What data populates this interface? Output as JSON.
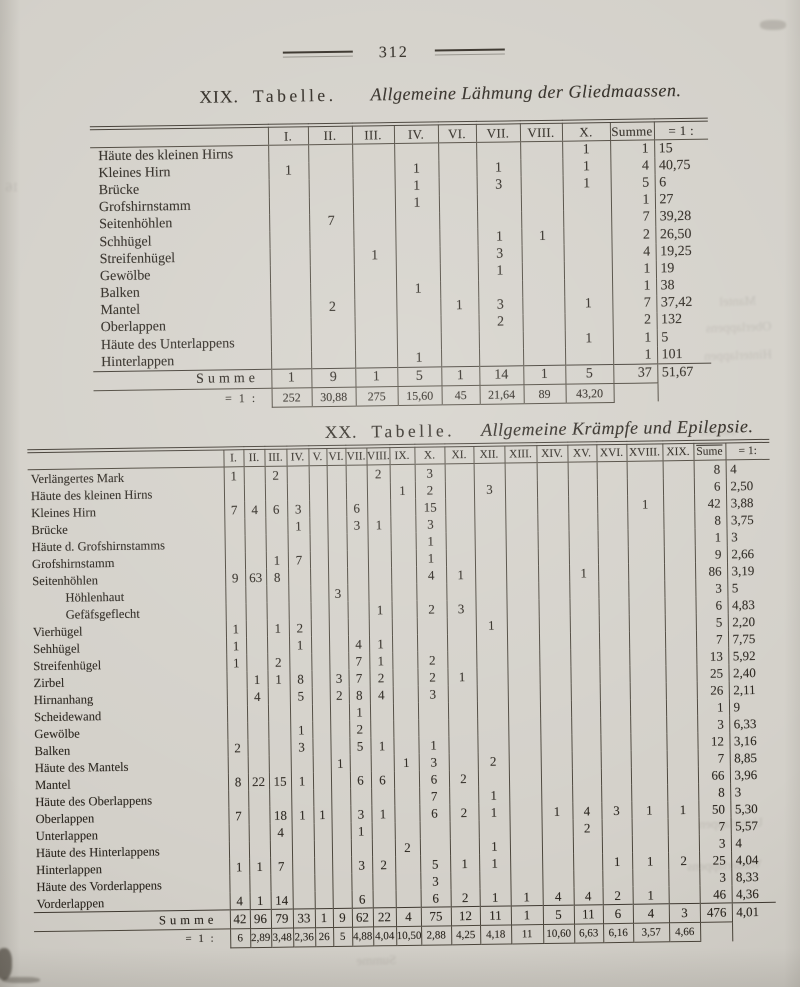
{
  "page": {
    "number": "312"
  },
  "table19": {
    "title_prefix": "XIX.",
    "title_label": "Tabelle.",
    "title_text": "Allgemeine Lähmung der Gliedmaassen.",
    "columns": [
      "I.",
      "II.",
      "III.",
      "IV.",
      "VI.",
      "VII.",
      "VIII.",
      "X.",
      "Summe",
      "= 1 :"
    ],
    "rows": [
      {
        "label": "Häute des kleinen Hirns",
        "cells": [
          "",
          "",
          "",
          "",
          "",
          "",
          "",
          "1"
        ],
        "summe": "1",
        "ratio": "15"
      },
      {
        "label": "Kleines Hirn",
        "cells": [
          "1",
          "",
          "",
          "1",
          "",
          "1",
          "",
          "1"
        ],
        "summe": "4",
        "ratio": "40,75"
      },
      {
        "label": "Brücke",
        "cells": [
          "",
          "",
          "",
          "1",
          "",
          "3",
          "",
          "1"
        ],
        "summe": "5",
        "ratio": "6"
      },
      {
        "label": "Grofshirnstamm",
        "cells": [
          "",
          "",
          "",
          "1",
          "",
          "",
          "",
          ""
        ],
        "summe": "1",
        "ratio": "27"
      },
      {
        "label": "Seitenhöhlen",
        "cells": [
          "",
          "7",
          "",
          "",
          "",
          "",
          "",
          ""
        ],
        "summe": "7",
        "ratio": "39,28"
      },
      {
        "label": "Schhügel",
        "cells": [
          "",
          "",
          "",
          "",
          "",
          "1",
          "1",
          ""
        ],
        "summe": "2",
        "ratio": "26,50"
      },
      {
        "label": "Streifenhügel",
        "cells": [
          "",
          "",
          "1",
          "",
          "",
          "3",
          "",
          ""
        ],
        "summe": "4",
        "ratio": "19,25"
      },
      {
        "label": "Gewölbe",
        "cells": [
          "",
          "",
          "",
          "",
          "",
          "1",
          "",
          ""
        ],
        "summe": "1",
        "ratio": "19"
      },
      {
        "label": "Balken",
        "cells": [
          "",
          "",
          "",
          "1",
          "",
          "",
          "",
          ""
        ],
        "summe": "1",
        "ratio": "38"
      },
      {
        "label": "Mantel",
        "cells": [
          "",
          "2",
          "",
          "",
          "1",
          "3",
          "",
          "1"
        ],
        "summe": "7",
        "ratio": "37,42"
      },
      {
        "label": "Oberlappen",
        "cells": [
          "",
          "",
          "",
          "",
          "",
          "2",
          "",
          ""
        ],
        "summe": "2",
        "ratio": "132"
      },
      {
        "label": "Häute des Unterlappens",
        "cells": [
          "",
          "",
          "",
          "",
          "",
          "",
          "",
          "1"
        ],
        "summe": "1",
        "ratio": "5"
      },
      {
        "label": "Hinterlappen",
        "cells": [
          "",
          "",
          "",
          "1",
          "",
          "",
          "",
          ""
        ],
        "summe": "1",
        "ratio": "101"
      }
    ],
    "summe_label": "Summe",
    "summe_cells": [
      "1",
      "9",
      "1",
      "5",
      "1",
      "14",
      "1",
      "5"
    ],
    "summe_total": "37",
    "summe_ratio": "51,67",
    "ratio_label": "= 1 :",
    "ratio_cells": [
      "252",
      "30,88",
      "275",
      "15,60",
      "45",
      "21,64",
      "89",
      "43,20"
    ]
  },
  "table20": {
    "title_prefix": "XX.",
    "title_label": "Tabelle.",
    "title_text": "Allgemeine Krämpfe und Epilepsie.",
    "columns": [
      "I.",
      "II.",
      "III.",
      "IV.",
      "V.",
      "VI.",
      "VII.",
      "VIII.",
      "IX.",
      "X.",
      "XI.",
      "XII.",
      "XIII.",
      "XIV.",
      "XV.",
      "XVI.",
      "XVIII.",
      "XIX.",
      "Sume",
      "= 1:"
    ],
    "rows": [
      {
        "label": "Verlängertes Mark",
        "cells": [
          "1",
          "",
          "2",
          "",
          "",
          "",
          "",
          "2",
          "",
          "3",
          "",
          "",
          "",
          "",
          "",
          "",
          "",
          ""
        ],
        "summe": "8",
        "ratio": "4"
      },
      {
        "label": "Häute des kleinen Hirns",
        "cells": [
          "",
          "",
          "",
          "",
          "",
          "",
          "",
          "",
          "1",
          "2",
          "",
          "3",
          "",
          "",
          "",
          "",
          "",
          ""
        ],
        "summe": "6",
        "ratio": "2,50"
      },
      {
        "label": "Kleines Hirn",
        "cells": [
          "7",
          "4",
          "6",
          "3",
          "",
          "",
          "6",
          "",
          "",
          "15",
          "",
          "",
          "",
          "",
          "",
          "",
          "1",
          ""
        ],
        "summe": "42",
        "ratio": "3,88"
      },
      {
        "label": "Brücke",
        "cells": [
          "",
          "",
          "",
          "1",
          "",
          "",
          "3",
          "1",
          "",
          "3",
          "",
          "",
          "",
          "",
          "",
          "",
          "",
          ""
        ],
        "summe": "8",
        "ratio": "3,75"
      },
      {
        "label": "Häute d. Grofshirnstamms",
        "cells": [
          "",
          "",
          "",
          "",
          "",
          "",
          "",
          "",
          "",
          "1",
          "",
          "",
          "",
          "",
          "",
          "",
          "",
          ""
        ],
        "summe": "1",
        "ratio": "3"
      },
      {
        "label": "Grofshirnstamm",
        "cells": [
          "",
          "",
          "1",
          "7",
          "",
          "",
          "",
          "",
          "",
          "1",
          "",
          "",
          "",
          "",
          "",
          "",
          "",
          ""
        ],
        "summe": "9",
        "ratio": "2,66"
      },
      {
        "label": "Seitenhöhlen",
        "cells": [
          "9",
          "63",
          "8",
          "",
          "",
          "",
          "",
          "",
          "",
          "4",
          "1",
          "",
          "",
          "",
          "1",
          "",
          "",
          ""
        ],
        "summe": "86",
        "ratio": "3,19"
      },
      {
        "label": "Höhlenhaut",
        "indent": true,
        "cells": [
          "",
          "",
          "",
          "",
          "",
          "3",
          "",
          "",
          "",
          "",
          "",
          "",
          "",
          "",
          "",
          "",
          "",
          ""
        ],
        "summe": "3",
        "ratio": "5"
      },
      {
        "label": "Gefäfsgeflecht",
        "indent": true,
        "cells": [
          "",
          "",
          "",
          "",
          "",
          "",
          "",
          "1",
          "",
          "2",
          "3",
          "",
          "",
          "",
          "",
          "",
          "",
          ""
        ],
        "summe": "6",
        "ratio": "4,83"
      },
      {
        "label": "Vierhügel",
        "cells": [
          "1",
          "",
          "1",
          "2",
          "",
          "",
          "",
          "",
          "",
          "",
          "",
          "1",
          "",
          "",
          "",
          "",
          "",
          ""
        ],
        "summe": "5",
        "ratio": "2,20"
      },
      {
        "label": "Sehhügel",
        "cells": [
          "1",
          "",
          "",
          "1",
          "",
          "",
          "4",
          "1",
          "",
          "",
          "",
          "",
          "",
          "",
          "",
          "",
          "",
          ""
        ],
        "summe": "7",
        "ratio": "7,75"
      },
      {
        "label": "Streifenhügel",
        "cells": [
          "1",
          "",
          "2",
          "",
          "",
          "",
          "7",
          "1",
          "",
          "2",
          "",
          "",
          "",
          "",
          "",
          "",
          "",
          ""
        ],
        "summe": "13",
        "ratio": "5,92"
      },
      {
        "label": "Zirbel",
        "cells": [
          "",
          "1",
          "1",
          "8",
          "",
          "3",
          "7",
          "2",
          "",
          "2",
          "1",
          "",
          "",
          "",
          "",
          "",
          "",
          ""
        ],
        "summe": "25",
        "ratio": "2,40"
      },
      {
        "label": "Hirnanhang",
        "cells": [
          "",
          "4",
          "",
          "5",
          "",
          "2",
          "8",
          "4",
          "",
          "3",
          "",
          "",
          "",
          "",
          "",
          "",
          "",
          ""
        ],
        "summe": "26",
        "ratio": "2,11"
      },
      {
        "label": "Scheidewand",
        "cells": [
          "",
          "",
          "",
          "",
          "",
          "",
          "1",
          "",
          "",
          "",
          "",
          "",
          "",
          "",
          "",
          "",
          "",
          ""
        ],
        "summe": "1",
        "ratio": "9"
      },
      {
        "label": "Gewölbe",
        "cells": [
          "",
          "",
          "",
          "1",
          "",
          "",
          "2",
          "",
          "",
          "",
          "",
          "",
          "",
          "",
          "",
          "",
          "",
          ""
        ],
        "summe": "3",
        "ratio": "6,33"
      },
      {
        "label": "Balken",
        "cells": [
          "2",
          "",
          "",
          "3",
          "",
          "",
          "5",
          "1",
          "",
          "1",
          "",
          "",
          "",
          "",
          "",
          "",
          "",
          ""
        ],
        "summe": "12",
        "ratio": "3,16"
      },
      {
        "label": "Häute des Mantels",
        "cells": [
          "",
          "",
          "",
          "",
          "",
          "1",
          "",
          "",
          "1",
          "3",
          "",
          "2",
          "",
          "",
          "",
          "",
          "",
          ""
        ],
        "summe": "7",
        "ratio": "8,85"
      },
      {
        "label": "Mantel",
        "cells": [
          "8",
          "22",
          "15",
          "1",
          "",
          "",
          "6",
          "6",
          "",
          "6",
          "2",
          "",
          "",
          "",
          "",
          "",
          "",
          ""
        ],
        "summe": "66",
        "ratio": "3,96"
      },
      {
        "label": "Häute des Oberlappens",
        "cells": [
          "",
          "",
          "",
          "",
          "",
          "",
          "",
          "",
          "",
          "7",
          "",
          "1",
          "",
          "",
          "",
          "",
          "",
          ""
        ],
        "summe": "8",
        "ratio": "3"
      },
      {
        "label": "Oberlappen",
        "cells": [
          "7",
          "",
          "18",
          "1",
          "1",
          "",
          "3",
          "1",
          "",
          "6",
          "2",
          "1",
          "",
          "1",
          "4",
          "3",
          "1",
          "1"
        ],
        "summe": "50",
        "ratio": "5,30"
      },
      {
        "label": "Unterlappen",
        "cells": [
          "",
          "",
          "4",
          "",
          "",
          "",
          "1",
          "",
          "",
          "",
          "",
          "",
          "",
          "",
          "2",
          "",
          "",
          ""
        ],
        "summe": "7",
        "ratio": "5,57"
      },
      {
        "label": "Häute des Hinterlappens",
        "cells": [
          "",
          "",
          "",
          "",
          "",
          "",
          "",
          "",
          "2",
          "",
          "",
          "1",
          "",
          "",
          "",
          "",
          "",
          ""
        ],
        "summe": "3",
        "ratio": "4"
      },
      {
        "label": "Hinterlappen",
        "cells": [
          "1",
          "1",
          "7",
          "",
          "",
          "",
          "3",
          "2",
          "",
          "5",
          "1",
          "1",
          "",
          "",
          "",
          "1",
          "1",
          "2"
        ],
        "summe": "25",
        "ratio": "4,04"
      },
      {
        "label": "Häute des Vorderlappens",
        "cells": [
          "",
          "",
          "",
          "",
          "",
          "",
          "",
          "",
          "",
          "3",
          "",
          "",
          "",
          "",
          "",
          "",
          "",
          ""
        ],
        "summe": "3",
        "ratio": "8,33"
      },
      {
        "label": "Vorderlappen",
        "cells": [
          "4",
          "1",
          "14",
          "",
          "",
          "",
          "6",
          "",
          "",
          "6",
          "2",
          "1",
          "1",
          "4",
          "4",
          "2",
          "1",
          ""
        ],
        "summe": "46",
        "ratio": "4,36"
      }
    ],
    "summe_label": "Summe",
    "summe_cells": [
      "42",
      "96",
      "79",
      "33",
      "1",
      "9",
      "62",
      "22",
      "4",
      "75",
      "12",
      "11",
      "1",
      "5",
      "11",
      "6",
      "4",
      "3"
    ],
    "summe_total": "476",
    "summe_ratio": "4,01",
    "ratio_label": "= 1 :",
    "ratio_cells": [
      "6",
      "2,89",
      "3,48",
      "2,36",
      "26",
      "5",
      "4,88",
      "4,04",
      "10,50",
      "2,88",
      "4,25",
      "4,18",
      "11",
      "10,60",
      "6,63",
      "6,16",
      "3,57",
      "4,66"
    ]
  },
  "ghosts": [
    "Mantel",
    "Oberlappens",
    "Hinterlappen",
    "Tabelle",
    "Unterlappen",
    "Vorderlappens",
    "Summe",
    "16"
  ]
}
